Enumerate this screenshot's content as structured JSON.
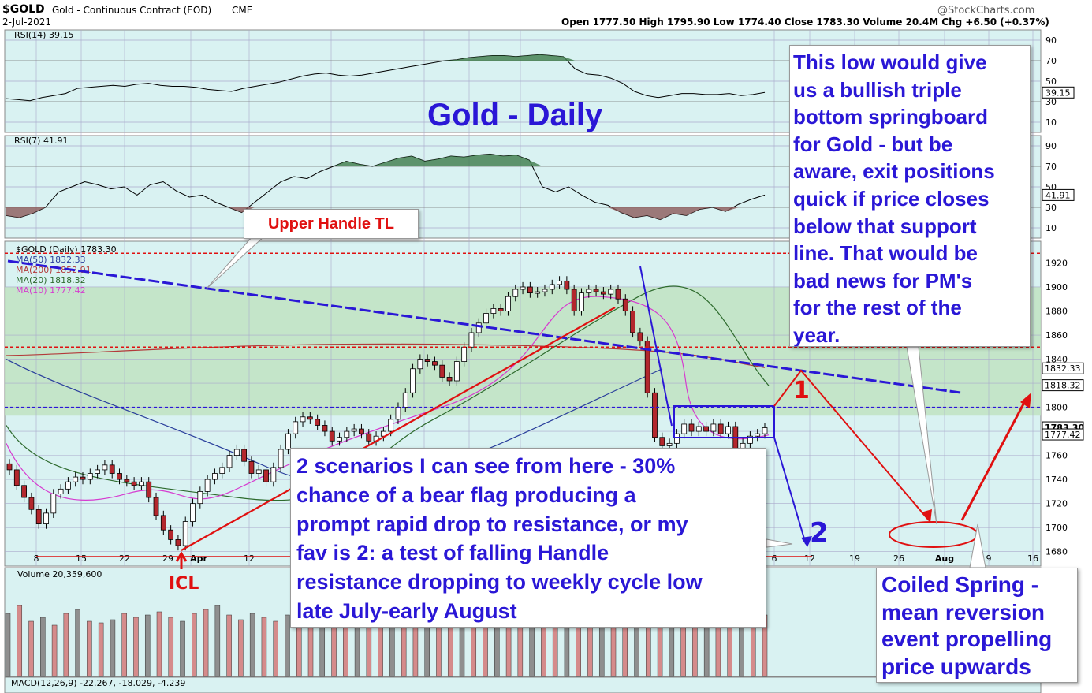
{
  "header": {
    "symbol": "$GOLD",
    "name": "Gold - Continuous Contract (EOD)",
    "exchange": "CME",
    "date": "2-Jul-2021",
    "source": "@StockCharts.com",
    "ohlc": "Open 1777.50  High 1795.90  Low 1774.40  Close 1783.30  Volume 20.4M  Chg +6.50 (+0.37%)"
  },
  "annotations": {
    "title": "Gold - Daily",
    "upper_handle": "Upper Handle TL",
    "icl": "ICL",
    "marker1": "1",
    "marker2": "2",
    "triple_bottom_lines": [
      "This low would give",
      "us a bullish triple",
      "bottom springboard",
      "for Gold - but be",
      "aware, exit positions",
      "quick if price closes",
      "below that support",
      "line. That would be",
      "bad news for PM's",
      "for the rest of the",
      "year."
    ],
    "scenarios_lines": [
      "2 scenarios I can see from here - 30%",
      "chance of a bear flag producing a",
      "prompt rapid drop to resistance, or my",
      "fav is 2: a test of falling Handle",
      "resistance dropping to weekly cycle low",
      "late July-early August"
    ],
    "coiled_lines": [
      "Coiled Spring -",
      "mean reversion",
      "event propelling",
      "price upwards"
    ]
  },
  "colors": {
    "panel_bg": "#d9f2f2",
    "green_zone": "#bfe3c2",
    "annotation_blue": "#2a17d6",
    "annotation_red": "#e01010",
    "up_candle": "#ffffff",
    "down_candle": "#b3272d"
  },
  "chart_data": {
    "type": "candlestick",
    "price_axis": {
      "ticks": [
        1680,
        1700,
        1720,
        1740,
        1760,
        1780,
        1800,
        1820,
        1840,
        1860,
        1880,
        1900,
        1920
      ],
      "range": [
        1668,
        1938
      ]
    },
    "x_ticks": [
      "8",
      "15",
      "22",
      "29",
      "Apr",
      "12",
      "6",
      "12",
      "19",
      "26",
      "Aug",
      "9",
      "16"
    ],
    "price_labels": [
      {
        "value": 1832.33,
        "text": "1832.33"
      },
      {
        "value": 1818.32,
        "text": "1818.32"
      },
      {
        "value": 1783.3,
        "text": "1783.30"
      },
      {
        "value": 1777.42,
        "text": "1777.42"
      }
    ],
    "ohlc_close": [
      1748,
      1735,
      1725,
      1715,
      1703,
      1712,
      1728,
      1732,
      1738,
      1742,
      1740,
      1745,
      1748,
      1752,
      1745,
      1740,
      1738,
      1735,
      1738,
      1725,
      1710,
      1698,
      1690,
      1685,
      1705,
      1720,
      1730,
      1740,
      1745,
      1750,
      1760,
      1765,
      1755,
      1745,
      1748,
      1738,
      1750,
      1765,
      1778,
      1788,
      1792,
      1790,
      1785,
      1780,
      1772,
      1775,
      1780,
      1782,
      1778,
      1772,
      1776,
      1780,
      1790,
      1800,
      1812,
      1832,
      1840,
      1838,
      1835,
      1825,
      1822,
      1838,
      1850,
      1862,
      1870,
      1878,
      1882,
      1880,
      1892,
      1898,
      1900,
      1895,
      1896,
      1898,
      1902,
      1905,
      1898,
      1880,
      1895,
      1898,
      1896,
      1894,
      1898,
      1890,
      1880,
      1862,
      1855,
      1812,
      1775,
      1768,
      1770,
      1778,
      1786,
      1780,
      1784,
      1780,
      1786,
      1778,
      1784,
      1765,
      1770,
      1776,
      1778,
      1783
    ],
    "legend": [
      {
        "name": "$GOLD (Daily) 1783.30",
        "color": "#000000"
      },
      {
        "name": "MA(50) 1832.33",
        "color": "#2a3f9c"
      },
      {
        "name": "MA(200) 1852.91",
        "color": "#b33a3a"
      },
      {
        "name": "MA(20) 1818.32",
        "color": "#2e6b2e"
      },
      {
        "name": "MA(10) 1777.42",
        "color": "#d63bd0"
      }
    ],
    "rsi14": {
      "label": "RSI(14) 39.15",
      "value_label": "39.15",
      "ticks": [
        90,
        70,
        50,
        30,
        10
      ],
      "values": [
        33,
        32,
        31,
        34,
        36,
        38,
        43,
        44,
        45,
        46,
        45,
        47,
        48,
        46,
        45,
        45,
        44,
        42,
        41,
        40,
        43,
        45,
        47,
        49,
        52,
        55,
        57,
        58,
        56,
        55,
        56,
        58,
        60,
        62,
        64,
        66,
        68,
        70,
        71,
        73,
        74,
        75,
        75,
        74,
        75,
        76,
        75,
        74,
        62,
        57,
        56,
        53,
        48,
        40,
        36,
        34,
        36,
        38,
        38,
        37,
        37,
        38,
        36,
        37,
        39
      ]
    },
    "rsi7": {
      "label": "RSI(7) 41.91",
      "value_label": "41.91",
      "ticks": [
        90,
        70,
        50,
        30,
        10
      ],
      "values": [
        22,
        20,
        24,
        30,
        45,
        50,
        55,
        52,
        48,
        50,
        42,
        52,
        55,
        46,
        40,
        42,
        35,
        30,
        25,
        35,
        45,
        55,
        60,
        58,
        65,
        70,
        75,
        72,
        70,
        74,
        78,
        80,
        75,
        77,
        80,
        79,
        81,
        82,
        80,
        81,
        76,
        50,
        45,
        50,
        42,
        35,
        32,
        25,
        20,
        22,
        18,
        24,
        22,
        28,
        30,
        26,
        33,
        38,
        42
      ]
    },
    "volume": {
      "label": "Volume 20,359,600"
    },
    "macd": {
      "label": "MACD(12,26,9) -22.267, -18.029, -4.239"
    }
  }
}
